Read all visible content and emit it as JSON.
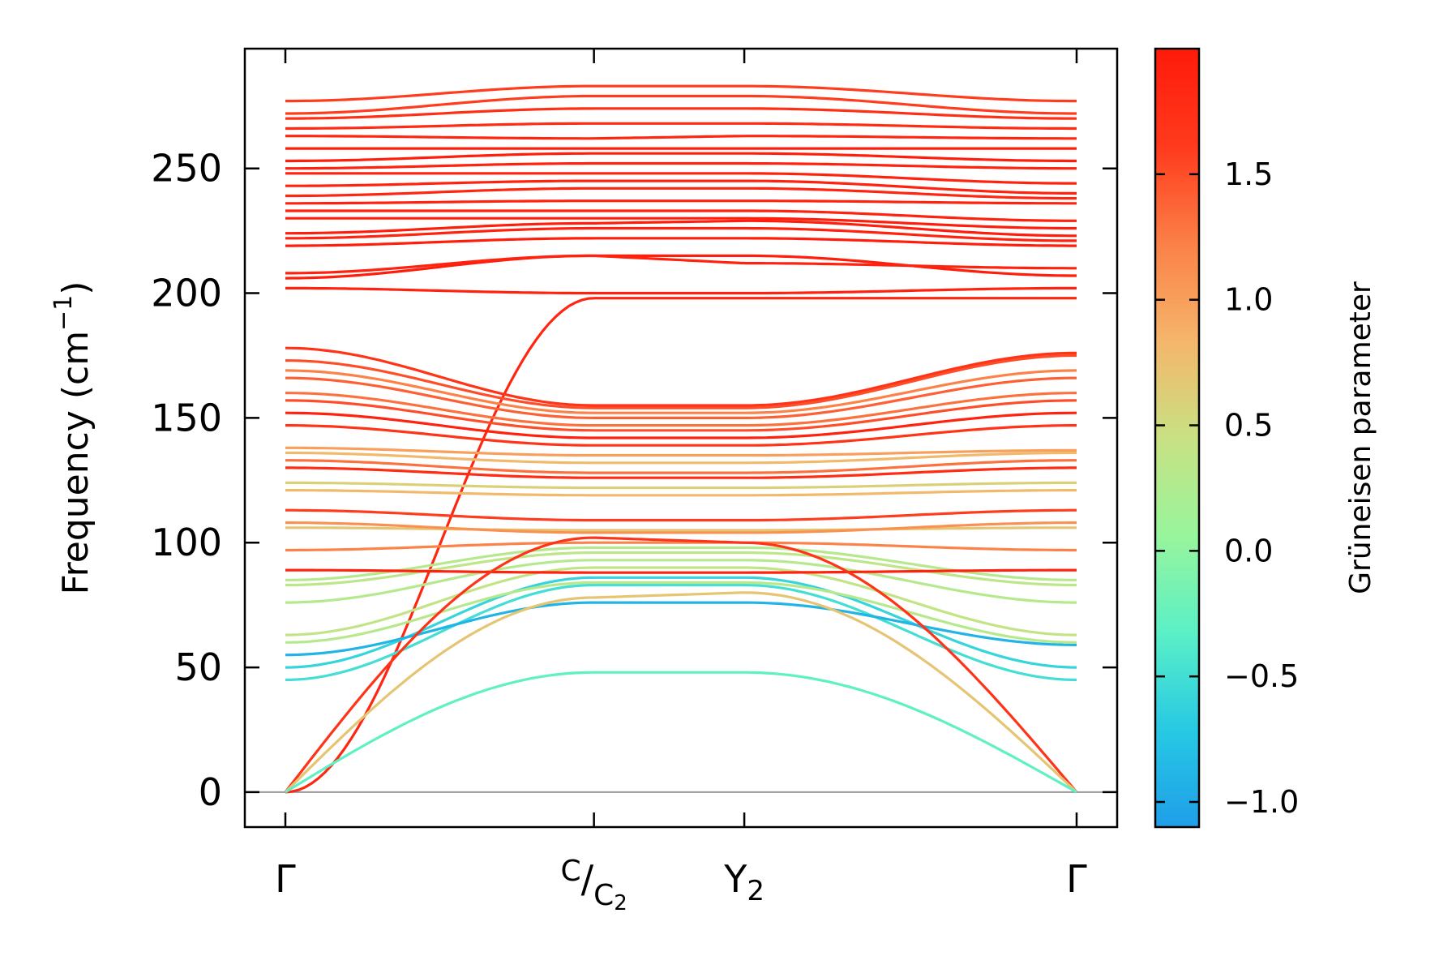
{
  "chart_data": {
    "type": "line",
    "title": "",
    "xlabel": "",
    "ylabel": "Frequency (cm⁻¹)",
    "ylabel_parts": {
      "main": "Frequency (cm",
      "sup": "−1",
      "close": ")"
    },
    "ylim": [
      -14,
      298
    ],
    "yticks": [
      0,
      50,
      100,
      150,
      200,
      250
    ],
    "x_range": [
      0,
      1
    ],
    "x_points": [
      {
        "label": "Γ",
        "x": 0.0
      },
      {
        "label": "C/C₂",
        "x": 0.39,
        "num": "C",
        "den": "C",
        "den_sub": "2"
      },
      {
        "label": "Y₂",
        "x": 0.58,
        "base": "Y",
        "sub": "2"
      },
      {
        "label": "Γ",
        "x": 1.0
      }
    ],
    "colorbar": {
      "label": "Grüneisen parameter",
      "range": [
        -1.1,
        2.0
      ],
      "ticks": [
        -1.0,
        -0.5,
        0.0,
        0.5,
        1.0,
        1.5
      ],
      "tick_labels": [
        "−1.0",
        "−0.5",
        "0.0",
        "0.5",
        "1.0",
        "1.5"
      ],
      "colormap": "rainbow",
      "colormap_stops": [
        "#1f9ee8",
        "#27c9e4",
        "#5bf0c6",
        "#98f59c",
        "#c9e183",
        "#f5b56a",
        "#fb8048",
        "#ff3a1c",
        "#ff1a0a"
      ]
    },
    "zero_line_color": "#999999",
    "series": [
      {
        "name": "mode-01",
        "gamma_pt": 0,
        "c_pt": 198,
        "y2_pt": 198,
        "gamma_end": 198,
        "gruneisen": 1.85
      },
      {
        "name": "mode-02",
        "gamma_pt": 202,
        "c_pt": 200,
        "y2_pt": 200,
        "gamma_end": 202,
        "gruneisen": 1.9
      },
      {
        "name": "mode-03",
        "gamma_pt": 206,
        "c_pt": 215,
        "y2_pt": 215,
        "gamma_end": 207,
        "gruneisen": 1.95
      },
      {
        "name": "mode-04",
        "gamma_pt": 208,
        "c_pt": 215,
        "y2_pt": 212,
        "gamma_end": 210,
        "gruneisen": 1.9
      },
      {
        "name": "mode-05",
        "gamma_pt": 219,
        "c_pt": 222,
        "y2_pt": 222,
        "gamma_end": 219,
        "gruneisen": 1.95
      },
      {
        "name": "mode-06",
        "gamma_pt": 222,
        "c_pt": 226,
        "y2_pt": 226,
        "gamma_end": 221,
        "gruneisen": 1.9
      },
      {
        "name": "mode-07",
        "gamma_pt": 224,
        "c_pt": 228,
        "y2_pt": 229,
        "gamma_end": 223,
        "gruneisen": 1.95
      },
      {
        "name": "mode-08",
        "gamma_pt": 230,
        "c_pt": 230,
        "y2_pt": 230,
        "gamma_end": 226,
        "gruneisen": 1.95
      },
      {
        "name": "mode-09",
        "gamma_pt": 233,
        "c_pt": 233,
        "y2_pt": 233,
        "gamma_end": 229,
        "gruneisen": 1.9
      },
      {
        "name": "mode-10",
        "gamma_pt": 236,
        "c_pt": 237,
        "y2_pt": 237,
        "gamma_end": 236,
        "gruneisen": 1.9
      },
      {
        "name": "mode-11",
        "gamma_pt": 239,
        "c_pt": 242,
        "y2_pt": 242,
        "gamma_end": 238,
        "gruneisen": 1.85
      },
      {
        "name": "mode-12",
        "gamma_pt": 243,
        "c_pt": 245,
        "y2_pt": 245,
        "gamma_end": 240,
        "gruneisen": 1.9
      },
      {
        "name": "mode-13",
        "gamma_pt": 248,
        "c_pt": 248,
        "y2_pt": 248,
        "gamma_end": 244,
        "gruneisen": 1.9
      },
      {
        "name": "mode-14",
        "gamma_pt": 250,
        "c_pt": 252,
        "y2_pt": 252,
        "gamma_end": 250,
        "gruneisen": 1.9
      },
      {
        "name": "mode-15",
        "gamma_pt": 253,
        "c_pt": 256,
        "y2_pt": 256,
        "gamma_end": 253,
        "gruneisen": 1.95
      },
      {
        "name": "mode-16",
        "gamma_pt": 258,
        "c_pt": 258,
        "y2_pt": 258,
        "gamma_end": 258,
        "gruneisen": 1.95
      },
      {
        "name": "mode-17",
        "gamma_pt": 263,
        "c_pt": 262,
        "y2_pt": 263,
        "gamma_end": 262,
        "gruneisen": 1.85
      },
      {
        "name": "mode-18",
        "gamma_pt": 266,
        "c_pt": 268,
        "y2_pt": 268,
        "gamma_end": 266,
        "gruneisen": 1.8
      },
      {
        "name": "mode-19",
        "gamma_pt": 270,
        "c_pt": 274,
        "y2_pt": 274,
        "gamma_end": 270,
        "gruneisen": 1.75
      },
      {
        "name": "mode-20",
        "gamma_pt": 272,
        "c_pt": 279,
        "y2_pt": 279,
        "gamma_end": 272,
        "gruneisen": 1.6
      },
      {
        "name": "mode-21",
        "gamma_pt": 277,
        "c_pt": 283,
        "y2_pt": 283,
        "gamma_end": 277,
        "gruneisen": 1.6
      }
    ],
    "acoustic": [
      {
        "name": "acoustic-LA",
        "gamma_pt": 0,
        "c_pt": 102,
        "y2_pt": 100,
        "gamma_end": 0,
        "gruneisen": 1.7
      },
      {
        "name": "acoustic-TA1",
        "gamma_pt": 0,
        "c_pt": 78,
        "y2_pt": 80,
        "gamma_end": 0,
        "gruneisen": 0.7
      },
      {
        "name": "acoustic-TA2",
        "gamma_pt": 0,
        "c_pt": 48,
        "y2_pt": 48,
        "gamma_end": 0,
        "gruneisen": -0.3
      }
    ],
    "optical_mid": [
      {
        "name": "mode-22",
        "gamma_pt": 45,
        "c_pt": 83,
        "y2_pt": 83,
        "gamma_end": 45,
        "gruneisen": -0.5
      },
      {
        "name": "mode-23",
        "gamma_pt": 50,
        "c_pt": 86,
        "y2_pt": 86,
        "gamma_end": 50,
        "gruneisen": -0.6
      },
      {
        "name": "mode-24",
        "gamma_pt": 55,
        "c_pt": 76,
        "y2_pt": 76,
        "gamma_end": 59,
        "gruneisen": -0.9
      },
      {
        "name": "mode-25",
        "gamma_pt": 60,
        "c_pt": 84,
        "y2_pt": 84,
        "gamma_end": 60,
        "gruneisen": 0.3
      },
      {
        "name": "mode-26",
        "gamma_pt": 63,
        "c_pt": 90,
        "y2_pt": 90,
        "gamma_end": 63,
        "gruneisen": 0.4
      },
      {
        "name": "mode-27",
        "gamma_pt": 76,
        "c_pt": 93,
        "y2_pt": 93,
        "gamma_end": 76,
        "gruneisen": 0.3
      },
      {
        "name": "mode-28",
        "gamma_pt": 83,
        "c_pt": 96,
        "y2_pt": 96,
        "gamma_end": 83,
        "gruneisen": 0.35
      },
      {
        "name": "mode-29",
        "gamma_pt": 85,
        "c_pt": 98,
        "y2_pt": 98,
        "gamma_end": 85,
        "gruneisen": 0.3
      },
      {
        "name": "mode-30",
        "gamma_pt": 89,
        "c_pt": 88,
        "y2_pt": 88,
        "gamma_end": 89,
        "gruneisen": 1.9
      },
      {
        "name": "mode-31",
        "gamma_pt": 97,
        "c_pt": 100,
        "y2_pt": 100,
        "gamma_end": 97,
        "gruneisen": 1.2
      },
      {
        "name": "mode-32",
        "gamma_pt": 106,
        "c_pt": 105,
        "y2_pt": 105,
        "gamma_end": 106,
        "gruneisen": 0.7
      },
      {
        "name": "mode-33",
        "gamma_pt": 108,
        "c_pt": 104,
        "y2_pt": 104,
        "gamma_end": 108,
        "gruneisen": 1.1
      },
      {
        "name": "mode-34",
        "gamma_pt": 113,
        "c_pt": 109,
        "y2_pt": 109,
        "gamma_end": 113,
        "gruneisen": 1.6
      },
      {
        "name": "mode-35",
        "gamma_pt": 121,
        "c_pt": 119,
        "y2_pt": 119,
        "gamma_end": 121,
        "gruneisen": 0.8
      },
      {
        "name": "mode-36",
        "gamma_pt": 124,
        "c_pt": 122,
        "y2_pt": 122,
        "gamma_end": 124,
        "gruneisen": 0.6
      },
      {
        "name": "mode-37",
        "gamma_pt": 130,
        "c_pt": 126,
        "y2_pt": 126,
        "gamma_end": 130,
        "gruneisen": 1.8
      },
      {
        "name": "mode-38",
        "gamma_pt": 133,
        "c_pt": 128,
        "y2_pt": 128,
        "gamma_end": 133,
        "gruneisen": 1.3
      },
      {
        "name": "mode-39",
        "gamma_pt": 136,
        "c_pt": 132,
        "y2_pt": 132,
        "gamma_end": 136,
        "gruneisen": 0.8
      },
      {
        "name": "mode-40",
        "gamma_pt": 138,
        "c_pt": 135,
        "y2_pt": 135,
        "gamma_end": 137,
        "gruneisen": 1.0
      },
      {
        "name": "mode-41",
        "gamma_pt": 147,
        "c_pt": 139,
        "y2_pt": 139,
        "gamma_end": 147,
        "gruneisen": 1.7
      },
      {
        "name": "mode-42",
        "gamma_pt": 152,
        "c_pt": 142,
        "y2_pt": 142,
        "gamma_end": 152,
        "gruneisen": 1.9
      },
      {
        "name": "mode-43",
        "gamma_pt": 157,
        "c_pt": 145,
        "y2_pt": 145,
        "gamma_end": 157,
        "gruneisen": 1.5
      },
      {
        "name": "mode-44",
        "gamma_pt": 160,
        "c_pt": 147,
        "y2_pt": 147,
        "gamma_end": 160,
        "gruneisen": 1.3
      },
      {
        "name": "mode-45",
        "gamma_pt": 166,
        "c_pt": 150,
        "y2_pt": 150,
        "gamma_end": 166,
        "gruneisen": 1.4
      },
      {
        "name": "mode-46",
        "gamma_pt": 169,
        "c_pt": 152,
        "y2_pt": 152,
        "gamma_end": 169,
        "gruneisen": 1.2
      },
      {
        "name": "mode-47",
        "gamma_pt": 173,
        "c_pt": 154,
        "y2_pt": 154,
        "gamma_end": 175,
        "gruneisen": 1.5
      },
      {
        "name": "mode-48",
        "gamma_pt": 178,
        "c_pt": 155,
        "y2_pt": 155,
        "gamma_end": 176,
        "gruneisen": 1.7
      }
    ]
  }
}
